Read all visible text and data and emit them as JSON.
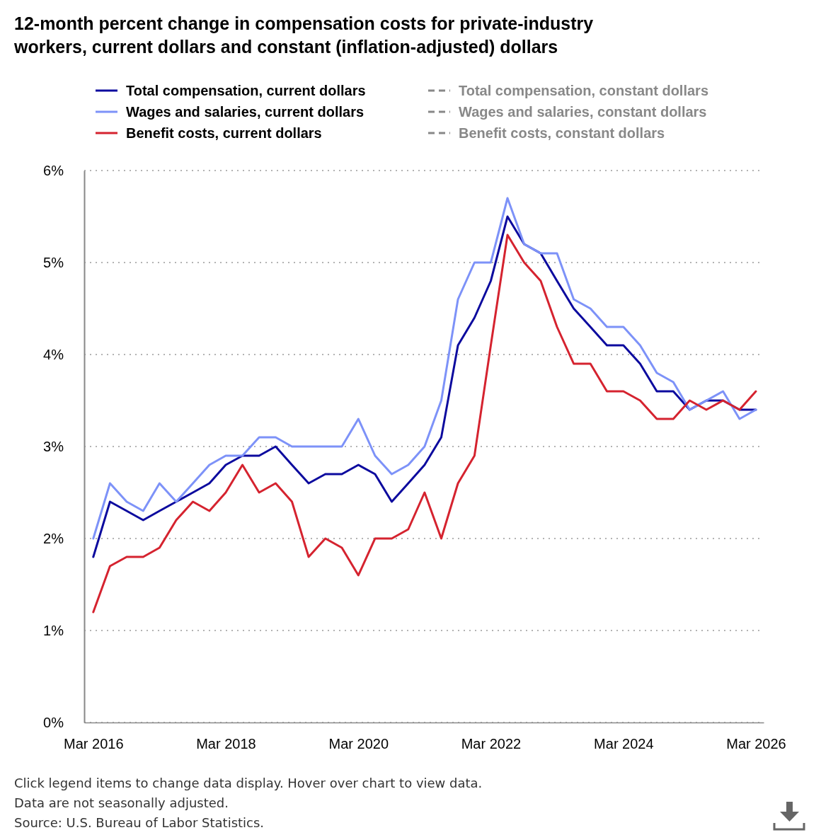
{
  "chart_data": {
    "type": "line",
    "title": "12-month percent change in compensation costs for private-industry workers, current dollars and constant (inflation-adjusted) dollars",
    "x": [
      "2016-03",
      "2016-06",
      "2016-09",
      "2016-12",
      "2017-03",
      "2017-06",
      "2017-09",
      "2017-12",
      "2018-03",
      "2018-06",
      "2018-09",
      "2018-12",
      "2019-03",
      "2019-06",
      "2019-09",
      "2019-12",
      "2020-03",
      "2020-06",
      "2020-09",
      "2020-12",
      "2021-03",
      "2021-06",
      "2021-09",
      "2021-12",
      "2022-03",
      "2022-06",
      "2022-09",
      "2022-12",
      "2023-03",
      "2023-06",
      "2023-09",
      "2023-12",
      "2024-03",
      "2024-06",
      "2024-09",
      "2024-12",
      "2025-03",
      "2025-06",
      "2025-09",
      "2025-12",
      "2026-03"
    ],
    "xlim": [
      "2016-01-11",
      "2026-04-13"
    ],
    "xticks": [
      {
        "value": "2016-03",
        "label": "Mar 2016"
      },
      {
        "value": "2018-03",
        "label": "Mar 2018"
      },
      {
        "value": "2020-03",
        "label": "Mar 2020"
      },
      {
        "value": "2022-03",
        "label": "Mar 2022"
      },
      {
        "value": "2024-03",
        "label": "Mar 2024"
      },
      {
        "value": "2026-03",
        "label": "Mar 2026"
      }
    ],
    "ylim": [
      0,
      6
    ],
    "yticks": [
      {
        "value": 0,
        "label": "0%"
      },
      {
        "value": 1,
        "label": "1%"
      },
      {
        "value": 2,
        "label": "2%"
      },
      {
        "value": 3,
        "label": "3%"
      },
      {
        "value": 4,
        "label": "4%"
      },
      {
        "value": 5,
        "label": "5%"
      },
      {
        "value": 6,
        "label": "6%"
      }
    ],
    "grid": "y",
    "legend": "top",
    "series": [
      {
        "name": "Total compensation, current dollars",
        "color": "#0c0a9e",
        "line_style": "solid",
        "values": [
          1.8,
          2.4,
          2.3,
          2.2,
          2.3,
          2.4,
          2.5,
          2.6,
          2.8,
          2.9,
          2.9,
          3.0,
          2.8,
          2.6,
          2.7,
          2.7,
          2.8,
          2.7,
          2.4,
          2.6,
          2.8,
          3.1,
          4.1,
          4.4,
          4.8,
          5.5,
          5.2,
          5.1,
          4.8,
          4.5,
          4.3,
          4.1,
          4.1,
          3.9,
          3.6,
          3.6,
          3.4,
          3.5,
          3.5,
          3.4,
          3.4
        ]
      },
      {
        "name": "Total compensation, constant dollars",
        "color": "#888888",
        "line_style": "dashed",
        "values": [
          null,
          null,
          null,
          null,
          null,
          null,
          null,
          null,
          null,
          null,
          null,
          null,
          null,
          null,
          null,
          null,
          null,
          null,
          null,
          null,
          null,
          null,
          null,
          null,
          null,
          null,
          null,
          null,
          null,
          null,
          null,
          null,
          null,
          null,
          null,
          null,
          null,
          null,
          null,
          null,
          null
        ]
      },
      {
        "name": "Wages and salaries, current dollars",
        "color": "#7d92f8",
        "line_style": "solid",
        "values": [
          2.0,
          2.6,
          2.4,
          2.3,
          2.6,
          2.4,
          2.6,
          2.8,
          2.9,
          2.9,
          3.1,
          3.1,
          3.0,
          3.0,
          3.0,
          3.0,
          3.3,
          2.9,
          2.7,
          2.8,
          3.0,
          3.5,
          4.6,
          5.0,
          5.0,
          5.7,
          5.2,
          5.1,
          5.1,
          4.6,
          4.5,
          4.3,
          4.3,
          4.1,
          3.8,
          3.7,
          3.4,
          3.5,
          3.6,
          3.3,
          3.4
        ]
      },
      {
        "name": "Wages and salaries, constant dollars",
        "color": "#888888",
        "line_style": "dashed",
        "values": [
          null,
          null,
          null,
          null,
          null,
          null,
          null,
          null,
          null,
          null,
          null,
          null,
          null,
          null,
          null,
          null,
          null,
          null,
          null,
          null,
          null,
          null,
          null,
          null,
          null,
          null,
          null,
          null,
          null,
          null,
          null,
          null,
          null,
          null,
          null,
          null,
          null,
          null,
          null,
          null,
          null
        ]
      },
      {
        "name": "Benefit costs, current dollars",
        "color": "#d5232f",
        "line_style": "solid",
        "values": [
          1.2,
          1.7,
          1.8,
          1.8,
          1.9,
          2.2,
          2.4,
          2.3,
          2.5,
          2.8,
          2.5,
          2.6,
          2.4,
          1.8,
          2.0,
          1.9,
          1.6,
          2.0,
          2.0,
          2.1,
          2.5,
          2.0,
          2.6,
          2.9,
          4.1,
          5.3,
          5.0,
          4.8,
          4.3,
          3.9,
          3.9,
          3.6,
          3.6,
          3.5,
          3.3,
          3.3,
          3.5,
          3.4,
          3.5,
          3.4,
          3.6
        ]
      },
      {
        "name": "Benefit costs, constant dollars",
        "color": "#888888",
        "line_style": "dashed",
        "values": [
          null,
          null,
          null,
          null,
          null,
          null,
          null,
          null,
          null,
          null,
          null,
          null,
          null,
          null,
          null,
          null,
          null,
          null,
          null,
          null,
          null,
          null,
          null,
          null,
          null,
          null,
          null,
          null,
          null,
          null,
          null,
          null,
          null,
          null,
          null,
          null,
          null,
          null,
          null,
          null,
          null
        ]
      }
    ],
    "annotations": [
      "Click legend items to change data display. Hover over chart to view data.",
      "Data are not seasonally adjusted.",
      "Source: U.S. Bureau of Labor Statistics."
    ]
  }
}
